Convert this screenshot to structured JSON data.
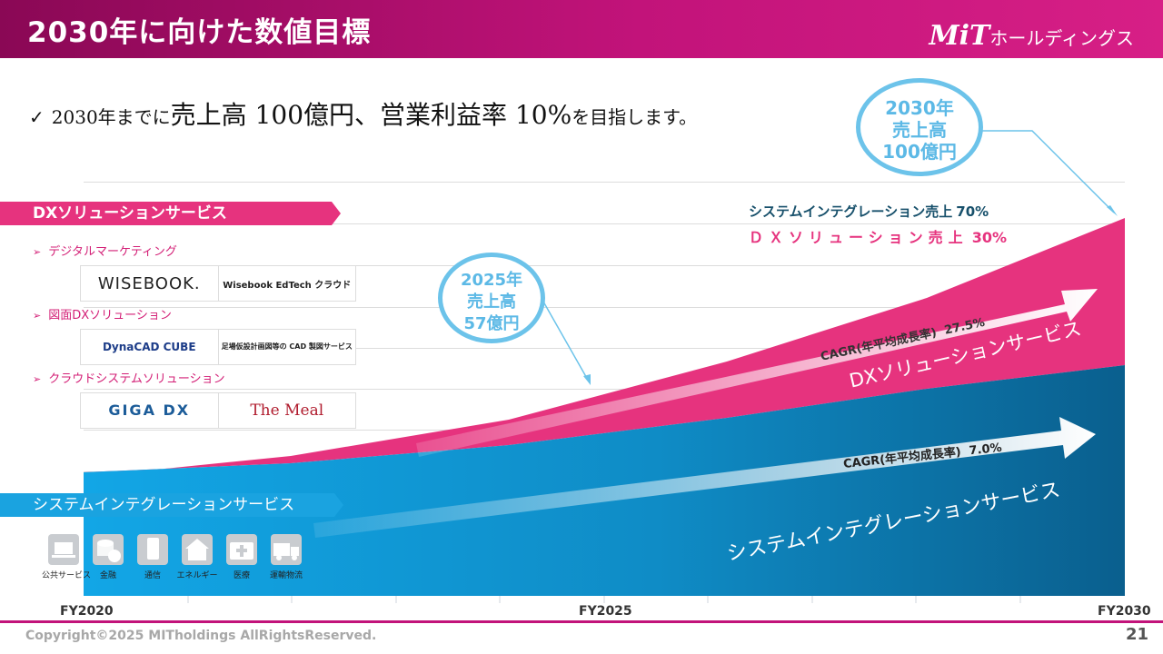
{
  "header": {
    "title": "2030年に向けた数値目標",
    "logo_mark": "MiT",
    "logo_text": "ホールディングス"
  },
  "headline": {
    "check": "✓",
    "prefix": "2030年までに",
    "sales": "売上高 100億円",
    "sep": "、",
    "margin": "営業利益率 10%",
    "suffix": "を目指します。"
  },
  "bubbles": {
    "fy2030": [
      "2030年",
      "売上高",
      "100億円"
    ],
    "fy2025": [
      "2025年",
      "売上高",
      "57億円"
    ]
  },
  "share": {
    "si_label": "システムインテグレーション売上",
    "si_value": "70%",
    "dx_label": "ＤＸソリューション売上",
    "dx_value": "30%"
  },
  "dx": {
    "banner": "DXソリューションサービス",
    "categories": [
      {
        "label": "デジタルマーケティング",
        "logos": [
          "WISEBOOK.",
          "Wisebook EdTech クラウド"
        ]
      },
      {
        "label": "図面DXソリューション",
        "logos": [
          "DynaCAD CUBE",
          "足場仮設計画図等の CAD 製図サービス"
        ]
      },
      {
        "label": "クラウドシステムソリューション",
        "logos": [
          "GIGA DX",
          "The Meal"
        ]
      }
    ],
    "cagr_label": "CAGR(年平均成長率)",
    "cagr_value": "27.5%",
    "area_label": "DXソリューションサービス"
  },
  "si": {
    "banner": "システムインテグレーションサービス",
    "industries": [
      "公共サービス",
      "金融",
      "通信",
      "エネルギー",
      "医療",
      "運輸物流"
    ],
    "cagr_label": "CAGR(年平均成長率)",
    "cagr_value": "7.0%",
    "area_label": "システムインテグレーションサービス"
  },
  "chart_data": {
    "type": "area",
    "x": [
      "FY2020",
      "FY2025",
      "FY2030"
    ],
    "tick_labels": [
      "FY2020",
      "FY2025",
      "FY2030"
    ],
    "colors": {
      "dx": "#e6337e",
      "si": "#0f9bd7",
      "si_dark": "#096a96"
    }
  },
  "footer": {
    "copyright": "Copyright©2025 MITholdings AllRightsReserved.",
    "page": "21"
  }
}
